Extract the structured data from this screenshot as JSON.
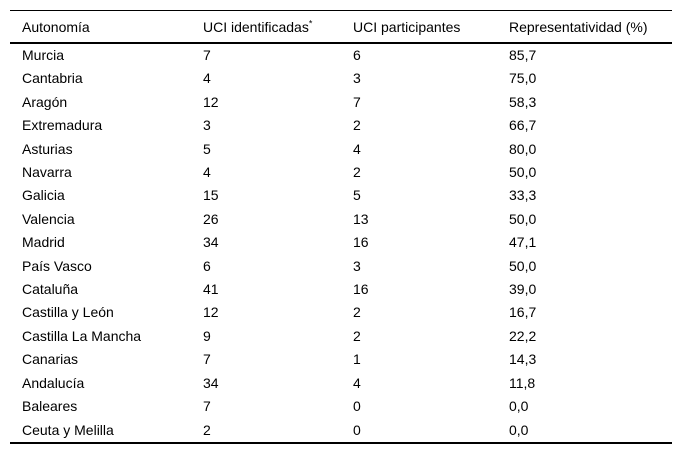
{
  "table": {
    "headers": {
      "autonomia": "Autonomía",
      "uci_identificadas": "UCI identificadas",
      "uci_identificadas_footnote_marker": "*",
      "uci_participantes": "UCI participantes",
      "representatividad": "Representatividad (%)"
    },
    "rows": [
      {
        "autonomia": "Murcia",
        "uci_identificadas": "7",
        "uci_participantes": "6",
        "representatividad": "85,7"
      },
      {
        "autonomia": "Cantabria",
        "uci_identificadas": "4",
        "uci_participantes": "3",
        "representatividad": "75,0"
      },
      {
        "autonomia": "Aragón",
        "uci_identificadas": "12",
        "uci_participantes": "7",
        "representatividad": "58,3"
      },
      {
        "autonomia": "Extremadura",
        "uci_identificadas": "3",
        "uci_participantes": "2",
        "representatividad": "66,7"
      },
      {
        "autonomia": "Asturias",
        "uci_identificadas": "5",
        "uci_participantes": "4",
        "representatividad": "80,0"
      },
      {
        "autonomia": "Navarra",
        "uci_identificadas": "4",
        "uci_participantes": "2",
        "representatividad": "50,0"
      },
      {
        "autonomia": "Galicia",
        "uci_identificadas": "15",
        "uci_participantes": "5",
        "representatividad": "33,3"
      },
      {
        "autonomia": "Valencia",
        "uci_identificadas": "26",
        "uci_participantes": "13",
        "representatividad": "50,0"
      },
      {
        "autonomia": "Madrid",
        "uci_identificadas": "34",
        "uci_participantes": "16",
        "representatividad": "47,1"
      },
      {
        "autonomia": "País Vasco",
        "uci_identificadas": "6",
        "uci_participantes": "3",
        "representatividad": "50,0"
      },
      {
        "autonomia": "Cataluña",
        "uci_identificadas": "41",
        "uci_participantes": "16",
        "representatividad": "39,0"
      },
      {
        "autonomia": "Castilla y León",
        "uci_identificadas": "12",
        "uci_participantes": "2",
        "representatividad": "16,7"
      },
      {
        "autonomia": "Castilla La Mancha",
        "uci_identificadas": "9",
        "uci_participantes": "2",
        "representatividad": "22,2"
      },
      {
        "autonomia": "Canarias",
        "uci_identificadas": "7",
        "uci_participantes": "1",
        "representatividad": "14,3"
      },
      {
        "autonomia": "Andalucía",
        "uci_identificadas": "34",
        "uci_participantes": "4",
        "representatividad": "11,8"
      },
      {
        "autonomia": "Baleares",
        "uci_identificadas": "7",
        "uci_participantes": "0",
        "representatividad": "0,0"
      },
      {
        "autonomia": "Ceuta y Melilla",
        "uci_identificadas": "2",
        "uci_participantes": "0",
        "representatividad": "0,0"
      }
    ],
    "colors": {
      "text": "#000000",
      "rule": "#000000",
      "background": "#ffffff"
    }
  }
}
